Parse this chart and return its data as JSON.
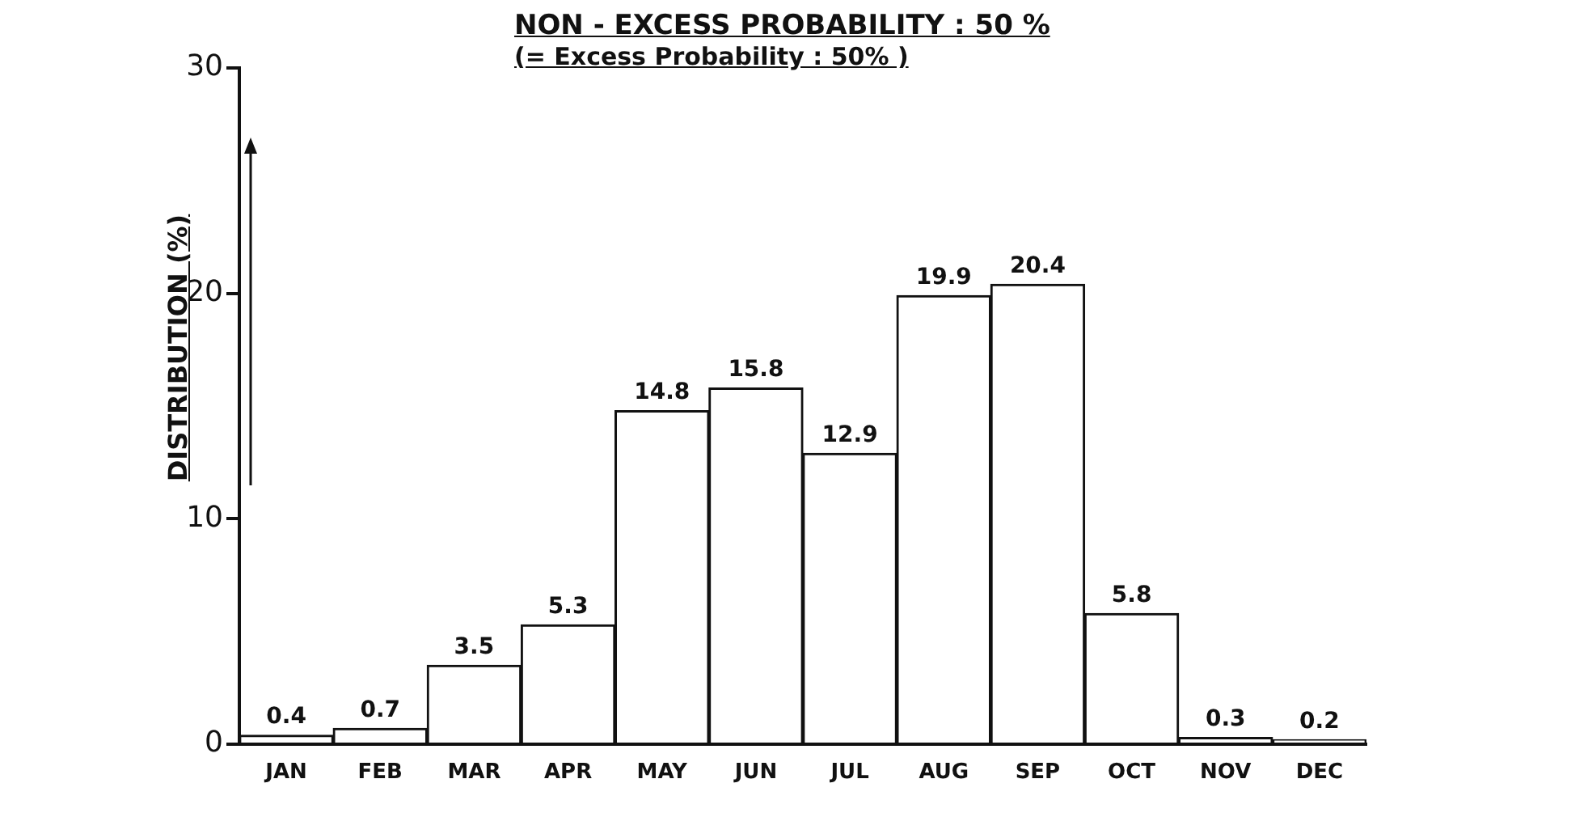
{
  "chart_data": {
    "type": "bar",
    "title": "NON - EXCESS PROBABILITY : 50 %",
    "subtitle": "(= Excess Probability : 50% )",
    "ylabel": "DISTRIBUTION (%)",
    "categories": [
      "JAN",
      "FEB",
      "MAR",
      "APR",
      "MAY",
      "JUN",
      "JUL",
      "AUG",
      "SEP",
      "OCT",
      "NOV",
      "DEC"
    ],
    "values": [
      0.4,
      0.7,
      3.5,
      5.3,
      14.8,
      15.8,
      12.9,
      19.9,
      20.4,
      5.8,
      0.3,
      0.2
    ],
    "color": "#ffffff",
    "ylim": [
      0,
      30
    ],
    "yticks": [
      0,
      10,
      20,
      30
    ],
    "grid": false,
    "legend": false,
    "data_labels": true
  }
}
